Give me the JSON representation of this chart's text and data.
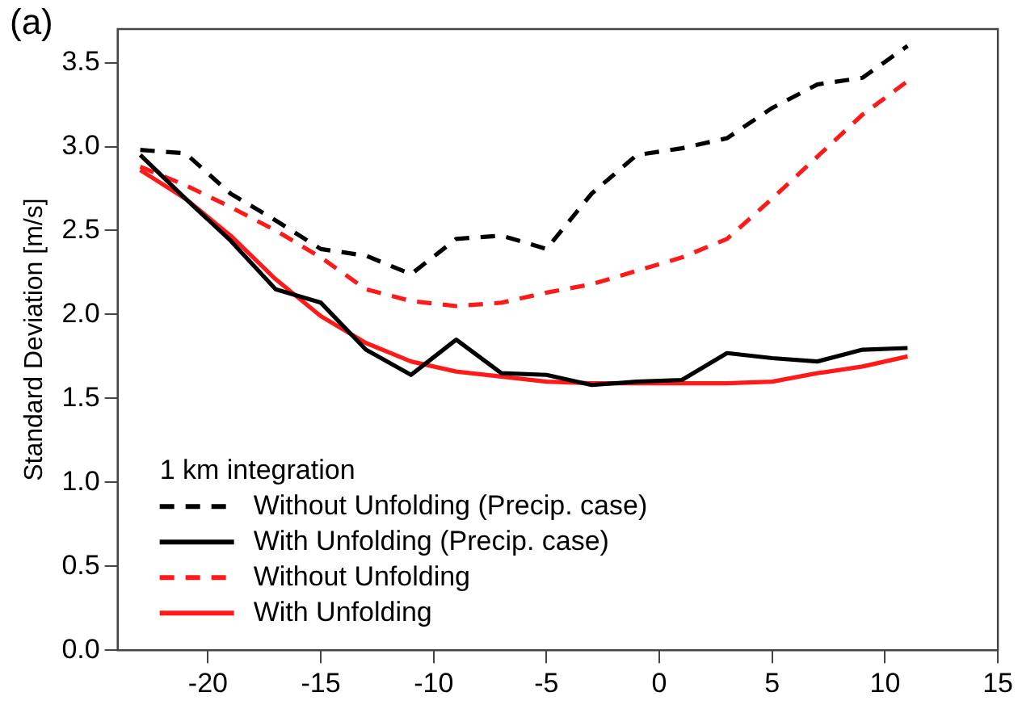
{
  "chart_data": {
    "type": "line",
    "ylabel": "Standard Deviation [m/s]",
    "annotations": [
      "(a)"
    ],
    "legend_title": "1 km integration",
    "legend": "bottom left",
    "grid": false,
    "marker": "none",
    "x": [
      -23,
      -21,
      -19,
      -17,
      -15,
      -13,
      -11,
      -9,
      -7,
      -5,
      -3,
      -1,
      1,
      3,
      5,
      7,
      9,
      11
    ],
    "xlim": [
      -24,
      15
    ],
    "xticks": [
      -20,
      -15,
      -10,
      -5,
      0,
      5,
      10,
      15
    ],
    "ylim": [
      0,
      3.7
    ],
    "yticks": [
      {
        "value": 0,
        "label": "0.0"
      },
      {
        "value": 0.5,
        "label": "0.5"
      },
      {
        "value": 1,
        "label": "1.0"
      },
      {
        "value": 1.5,
        "label": "1.5"
      },
      {
        "value": 2,
        "label": "2.0"
      },
      {
        "value": 2.5,
        "label": "2.5"
      },
      {
        "value": 3,
        "label": "3.0"
      },
      {
        "value": 3.5,
        "label": "3.5"
      }
    ],
    "series": [
      {
        "name": "Without Unfolding (Precip. case)",
        "color": "#000000",
        "line_style": "dashed",
        "values": [
          2.98,
          2.96,
          2.72,
          2.56,
          2.39,
          2.35,
          2.24,
          2.45,
          2.47,
          2.39,
          2.72,
          2.95,
          2.99,
          3.05,
          3.23,
          3.37,
          3.41,
          3.6
        ]
      },
      {
        "name": "With Unfolding (Precip. case)",
        "color": "#000000",
        "line_style": "solid",
        "values": [
          2.95,
          2.69,
          2.44,
          2.15,
          2.07,
          1.79,
          1.64,
          1.85,
          1.65,
          1.64,
          1.58,
          1.6,
          1.61,
          1.77,
          1.74,
          1.72,
          1.79,
          1.8
        ]
      },
      {
        "name": "Without Unfolding",
        "color": "#ff1a1a",
        "line_style": "dashed",
        "values": [
          2.88,
          2.77,
          2.64,
          2.5,
          2.34,
          2.15,
          2.08,
          2.05,
          2.07,
          2.13,
          2.18,
          2.26,
          2.34,
          2.45,
          2.69,
          2.94,
          3.19,
          3.39
        ]
      },
      {
        "name": "With Unfolding",
        "color": "#ff1a1a",
        "line_style": "solid",
        "values": [
          2.86,
          2.69,
          2.47,
          2.21,
          1.99,
          1.83,
          1.72,
          1.66,
          1.63,
          1.6,
          1.59,
          1.59,
          1.59,
          1.59,
          1.6,
          1.65,
          1.69,
          1.75
        ]
      }
    ]
  }
}
